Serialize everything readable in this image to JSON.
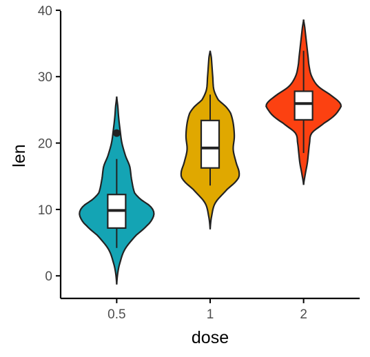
{
  "chart_data": {
    "type": "violin",
    "xlabel": "dose",
    "ylabel": "len",
    "categories": [
      "0.5",
      "1",
      "2"
    ],
    "ylim": [
      -3.4,
      40.3
    ],
    "yticks": [
      0,
      10,
      20,
      30,
      40
    ],
    "grid": false,
    "legend": "none",
    "groups": [
      {
        "category": "0.5",
        "color": "#14a4b4",
        "box": {
          "min": 4.2,
          "q1": 7.2,
          "median": 9.85,
          "q3": 12.25,
          "max": 17.6
        },
        "outliers": [
          21.5
        ],
        "density_range": [
          -1.3,
          27.0
        ],
        "density": [
          [
            -1.3,
            0.0
          ],
          [
            0.5,
            0.03
          ],
          [
            2.0,
            0.09
          ],
          [
            4.0,
            0.22
          ],
          [
            6.0,
            0.5
          ],
          [
            7.5,
            0.8
          ],
          [
            8.5,
            0.95
          ],
          [
            9.5,
            1.0
          ],
          [
            10.5,
            0.9
          ],
          [
            11.5,
            0.65
          ],
          [
            12.5,
            0.48
          ],
          [
            14.5,
            0.4
          ],
          [
            16.5,
            0.35
          ],
          [
            18.0,
            0.24
          ],
          [
            20.0,
            0.14
          ],
          [
            22.0,
            0.09
          ],
          [
            24.0,
            0.05
          ],
          [
            25.5,
            0.03
          ],
          [
            27.0,
            0.0
          ]
        ]
      },
      {
        "category": "1",
        "color": "#e0a800",
        "box": {
          "min": 13.6,
          "q1": 16.25,
          "median": 19.25,
          "q3": 23.4,
          "max": 27.3
        },
        "outliers": [],
        "density_range": [
          7.0,
          33.9
        ],
        "density": [
          [
            7.0,
            0.0
          ],
          [
            9.0,
            0.04
          ],
          [
            11.0,
            0.14
          ],
          [
            13.0,
            0.45
          ],
          [
            14.5,
            0.73
          ],
          [
            15.5,
            0.78
          ],
          [
            17.0,
            0.7
          ],
          [
            19.0,
            0.62
          ],
          [
            21.0,
            0.65
          ],
          [
            23.0,
            0.62
          ],
          [
            24.5,
            0.55
          ],
          [
            25.5,
            0.42
          ],
          [
            26.5,
            0.22
          ],
          [
            28.0,
            0.1
          ],
          [
            30.0,
            0.07
          ],
          [
            31.5,
            0.05
          ],
          [
            33.0,
            0.03
          ],
          [
            33.9,
            0.0
          ]
        ]
      },
      {
        "category": "2",
        "color": "#fc4111",
        "box": {
          "min": 18.5,
          "q1": 23.5,
          "median": 25.95,
          "q3": 27.8,
          "max": 33.9
        },
        "outliers": [],
        "density_range": [
          13.7,
          38.6
        ],
        "density": [
          [
            13.7,
            0.0
          ],
          [
            15.5,
            0.05
          ],
          [
            17.0,
            0.1
          ],
          [
            18.5,
            0.13
          ],
          [
            20.0,
            0.16
          ],
          [
            21.5,
            0.22
          ],
          [
            23.0,
            0.55
          ],
          [
            24.0,
            0.8
          ],
          [
            25.0,
            0.95
          ],
          [
            25.8,
            1.0
          ],
          [
            27.0,
            0.78
          ],
          [
            28.5,
            0.4
          ],
          [
            30.0,
            0.22
          ],
          [
            31.5,
            0.15
          ],
          [
            33.0,
            0.12
          ],
          [
            34.5,
            0.09
          ],
          [
            36.0,
            0.06
          ],
          [
            37.5,
            0.03
          ],
          [
            38.6,
            0.0
          ]
        ]
      }
    ]
  }
}
